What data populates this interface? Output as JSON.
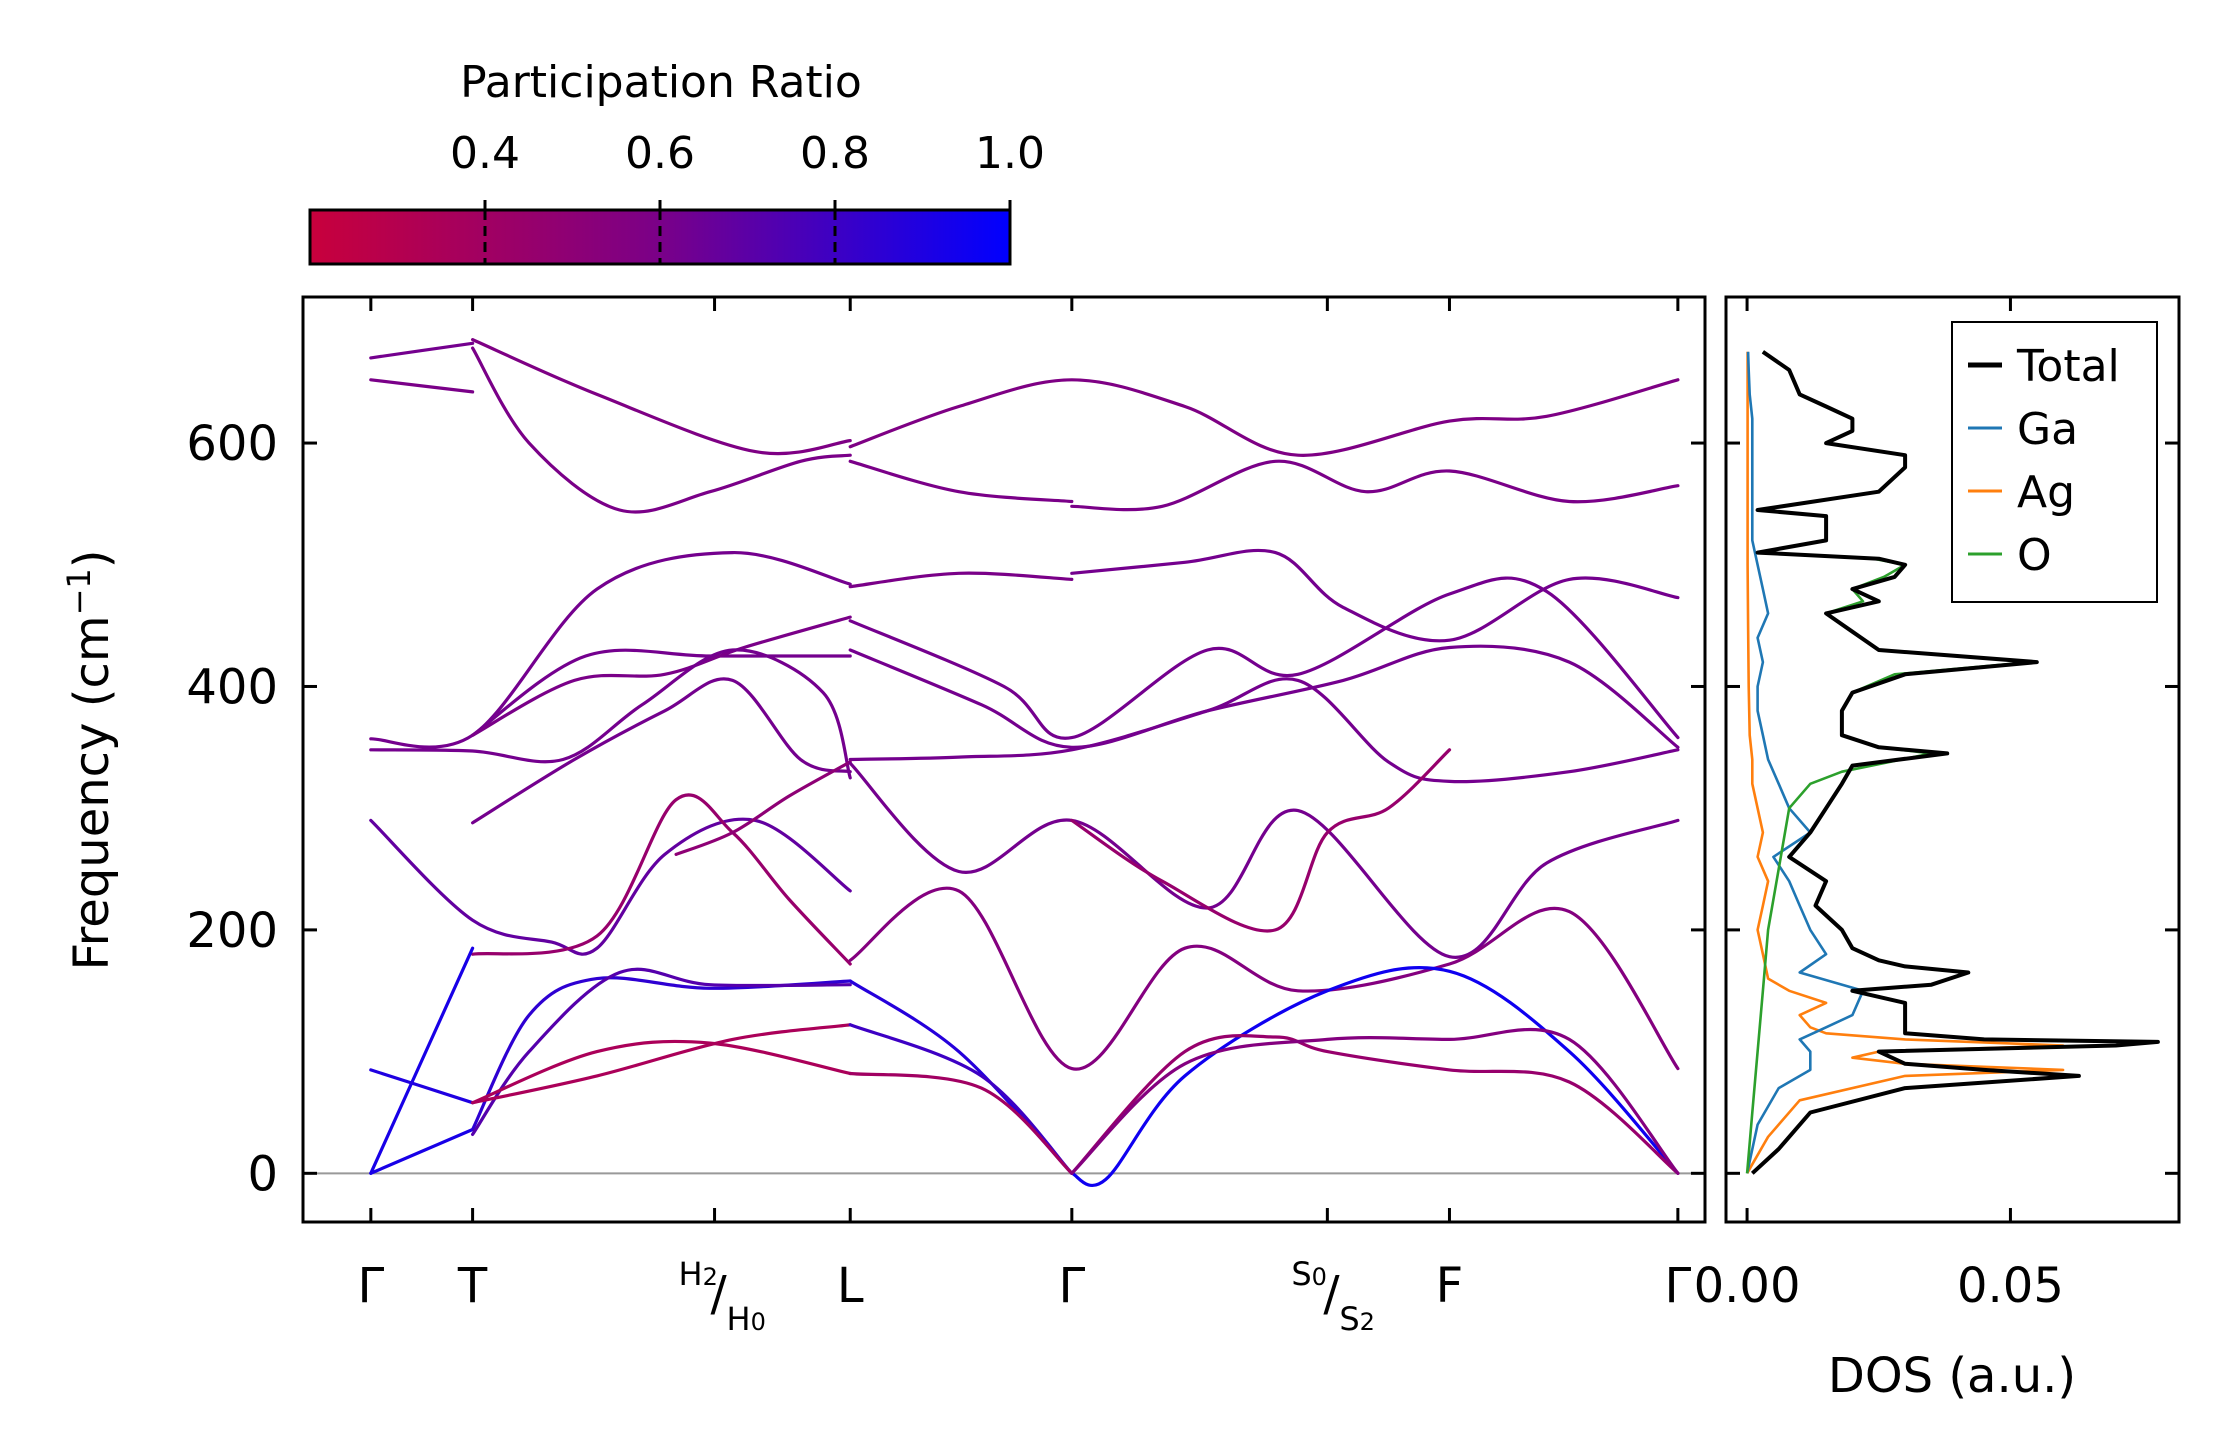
{
  "colorbar": {
    "label": "Participation Ratio",
    "range": [
      0.2,
      1.0
    ],
    "ticks": [
      "0.4",
      "0.6",
      "0.8",
      "1.0"
    ],
    "tick_values": [
      0.4,
      0.6,
      0.8,
      1.0
    ],
    "color_low": "#c8003c",
    "color_mid": "#7a0088",
    "color_high": "#0000ff"
  },
  "chart_data": [
    {
      "type": "line",
      "name": "phonon-band-structure",
      "ylabel": "Frequency (cm",
      "ylabel_sup": "−1",
      "ylabel_tail": ")",
      "ylim": [
        -40,
        720
      ],
      "yticks": [
        "0",
        "200",
        "400",
        "600"
      ],
      "ytick_values": [
        0,
        200,
        400,
        600
      ],
      "xlim": [
        -0.3,
        5.9
      ],
      "kpoints": [
        {
          "label": "Γ",
          "x": 0
        },
        {
          "label": "T",
          "x": 0.45
        },
        {
          "top": "H",
          "top_sub": "2",
          "bottom": "H",
          "bottom_sub": "0",
          "x": 1.52
        },
        {
          "label": "L",
          "x": 2.12
        },
        {
          "label": "Γ",
          "x": 3.1
        },
        {
          "top": "S",
          "top_sub": "0",
          "bottom": "S",
          "bottom_sub": "2",
          "x": 4.23
        },
        {
          "label": "F",
          "x": 4.77
        },
        {
          "label": "Γ",
          "x": 5.78
        }
      ],
      "zero_line": 0,
      "bands": [
        {
          "pr": 0.62,
          "x": [
            0,
            0.45
          ],
          "y": [
            670,
            682
          ]
        },
        {
          "pr": 0.6,
          "x": [
            0,
            0.45
          ],
          "y": [
            652,
            642
          ]
        },
        {
          "pr": 0.58,
          "x": [
            0.45,
            1.0,
            1.7,
            2.12
          ],
          "y": [
            685,
            640,
            593,
            602
          ]
        },
        {
          "pr": 0.6,
          "x": [
            0.45,
            0.7,
            1.1,
            1.5,
            1.9,
            2.12
          ],
          "y": [
            678,
            600,
            545,
            560,
            585,
            590
          ]
        },
        {
          "pr": 0.58,
          "x": [
            2.12,
            2.6,
            3.1,
            3.6,
            4.1,
            4.77,
            5.2,
            5.78
          ],
          "y": [
            597,
            630,
            652,
            630,
            590,
            618,
            622,
            652
          ]
        },
        {
          "pr": 0.6,
          "x": [
            2.12,
            2.6,
            3.1
          ],
          "y": [
            585,
            560,
            552
          ]
        },
        {
          "pr": 0.6,
          "x": [
            3.1,
            3.5,
            4.0,
            4.4,
            4.77,
            5.3,
            5.78
          ],
          "y": [
            548,
            548,
            585,
            560,
            577,
            552,
            565
          ]
        },
        {
          "pr": 0.62,
          "x": [
            0,
            0.45,
            1.0,
            1.6,
            2.12
          ],
          "y": [
            357,
            360,
            480,
            510,
            484
          ]
        },
        {
          "pr": 0.6,
          "x": [
            2.12,
            2.6,
            3.1
          ],
          "y": [
            482,
            493,
            488
          ]
        },
        {
          "pr": 0.62,
          "x": [
            3.1,
            3.6,
            4.0,
            4.3,
            4.77,
            5.3,
            5.78
          ],
          "y": [
            493,
            502,
            510,
            465,
            438,
            488,
            473
          ]
        },
        {
          "pr": 0.62,
          "x": [
            0.45,
            0.95,
            1.5,
            2.12
          ],
          "y": [
            360,
            425,
            425,
            425
          ]
        },
        {
          "pr": 0.6,
          "x": [
            0.45,
            0.9,
            1.3,
            1.65,
            2.12
          ],
          "y": [
            360,
            405,
            410,
            432,
            457
          ]
        },
        {
          "pr": 0.62,
          "x": [
            2.12,
            2.8,
            3.1,
            3.7,
            4.1,
            4.77,
            5.2,
            5.78
          ],
          "y": [
            454,
            400,
            358,
            430,
            410,
            476,
            478,
            358
          ]
        },
        {
          "pr": 0.62,
          "x": [
            2.12,
            2.7,
            3.1,
            3.7,
            4.3,
            4.77,
            5.3,
            5.78
          ],
          "y": [
            430,
            385,
            350,
            380,
            405,
            432,
            420,
            350
          ]
        },
        {
          "pr": 0.62,
          "x": [
            0,
            0.45,
            0.85,
            1.2,
            1.6,
            2.0,
            2.12
          ],
          "y": [
            348,
            347,
            340,
            385,
            430,
            395,
            325
          ]
        },
        {
          "pr": 0.62,
          "x": [
            0.45,
            0.9,
            1.3,
            1.6,
            1.9,
            2.12
          ],
          "y": [
            288,
            340,
            380,
            405,
            340,
            330
          ]
        },
        {
          "pr": 0.62,
          "x": [
            2.12,
            2.6,
            3.1,
            3.7,
            4.1,
            4.5,
            4.77,
            5.3,
            5.78
          ],
          "y": [
            340,
            342,
            348,
            380,
            405,
            338,
            322,
            330,
            348
          ]
        },
        {
          "pr": 0.68,
          "x": [
            0,
            0.45,
            0.8,
            1.0,
            1.3,
            1.7,
            2.12
          ],
          "y": [
            290,
            208,
            190,
            185,
            262,
            290,
            232
          ]
        },
        {
          "pr": 0.45,
          "x": [
            0.45,
            1.0,
            1.35,
            1.6,
            1.85,
            2.12
          ],
          "y": [
            180,
            195,
            307,
            280,
            225,
            172
          ]
        },
        {
          "pr": 0.5,
          "x": [
            1.35,
            1.6,
            1.85,
            2.12
          ],
          "y": [
            262,
            280,
            310,
            338
          ]
        },
        {
          "pr": 0.62,
          "x": [
            2.12,
            2.6,
            3.1,
            3.7,
            4.1,
            4.77,
            5.2,
            5.78
          ],
          "y": [
            337,
            248,
            290,
            218,
            298,
            178,
            255,
            290
          ]
        },
        {
          "pr": 0.45,
          "x": [
            3.1,
            3.5,
            4.0,
            4.23,
            4.5,
            4.77
          ],
          "y": [
            290,
            240,
            200,
            280,
            300,
            348
          ]
        },
        {
          "pr": 0.55,
          "x": [
            2.12,
            2.6,
            3.1,
            3.6,
            4.1,
            4.77,
            5.3,
            5.78
          ],
          "y": [
            175,
            232,
            86,
            185,
            150,
            172,
            215,
            86
          ]
        },
        {
          "pr": 0.92,
          "x": [
            0,
            0.45
          ],
          "y": [
            0,
            185
          ]
        },
        {
          "pr": 0.9,
          "x": [
            0,
            0.45
          ],
          "y": [
            85,
            58
          ]
        },
        {
          "pr": 0.92,
          "x": [
            0,
            0.45
          ],
          "y": [
            0,
            36
          ]
        },
        {
          "pr": 0.85,
          "x": [
            0.45,
            0.7,
            1.0,
            1.5,
            2.12
          ],
          "y": [
            36,
            130,
            160,
            152,
            158
          ]
        },
        {
          "pr": 0.72,
          "x": [
            0.45,
            0.7,
            1.1,
            1.5,
            2.12
          ],
          "y": [
            32,
            100,
            165,
            155,
            155
          ]
        },
        {
          "pr": 0.35,
          "x": [
            0.45,
            1.0,
            1.5,
            2.12
          ],
          "y": [
            58,
            100,
            107,
            82
          ]
        },
        {
          "pr": 0.35,
          "x": [
            0.45,
            1.0,
            1.6,
            2.12
          ],
          "y": [
            58,
            80,
            110,
            122
          ]
        },
        {
          "pr": 0.88,
          "x": [
            2.12,
            2.6,
            3.1
          ],
          "y": [
            158,
            100,
            0
          ]
        },
        {
          "pr": 0.8,
          "x": [
            2.12,
            2.7,
            3.1
          ],
          "y": [
            122,
            80,
            0
          ]
        },
        {
          "pr": 0.4,
          "x": [
            2.12,
            2.7,
            3.1
          ],
          "y": [
            82,
            70,
            0
          ]
        },
        {
          "pr": 0.95,
          "x": [
            3.1,
            3.25,
            3.6,
            4.23,
            4.77,
            5.3,
            5.78
          ],
          "y": [
            0,
            -5,
            80,
            150,
            166,
            100,
            0
          ]
        },
        {
          "pr": 0.45,
          "x": [
            3.1,
            3.6,
            4.0,
            4.23,
            4.77,
            5.3,
            5.78
          ],
          "y": [
            0,
            100,
            112,
            100,
            85,
            75,
            0
          ]
        },
        {
          "pr": 0.55,
          "x": [
            3.1,
            3.6,
            4.23,
            4.77,
            5.3,
            5.78
          ],
          "y": [
            0,
            90,
            110,
            110,
            110,
            0
          ]
        }
      ]
    },
    {
      "type": "line",
      "name": "density-of-states",
      "xlabel": "DOS (a.u.)",
      "xticks": [
        "0.00",
        "0.05"
      ],
      "xtick_values": [
        0.0,
        0.05
      ],
      "xlim": [
        -0.004,
        0.082
      ],
      "ylim": [
        -40,
        720
      ],
      "legend_position": "top-right",
      "series": [
        {
          "name": "Total",
          "color": "#000000",
          "y": [
            0,
            20,
            50,
            70,
            80,
            85,
            90,
            100,
            105,
            108,
            110,
            115,
            125,
            140,
            150,
            155,
            165,
            170,
            175,
            185,
            200,
            220,
            240,
            260,
            280,
            300,
            320,
            335,
            345,
            350,
            360,
            380,
            395,
            410,
            420,
            430,
            445,
            460,
            470,
            480,
            490,
            500,
            505,
            510,
            520,
            540,
            545,
            560,
            580,
            590,
            600,
            610,
            620,
            630,
            640,
            660,
            675
          ],
          "values": [
            0.001,
            0.006,
            0.012,
            0.03,
            0.063,
            0.045,
            0.03,
            0.025,
            0.07,
            0.078,
            0.045,
            0.03,
            0.03,
            0.03,
            0.02,
            0.035,
            0.042,
            0.03,
            0.025,
            0.02,
            0.018,
            0.013,
            0.015,
            0.008,
            0.012,
            0.015,
            0.018,
            0.02,
            0.038,
            0.025,
            0.018,
            0.018,
            0.02,
            0.03,
            0.055,
            0.025,
            0.02,
            0.015,
            0.025,
            0.02,
            0.028,
            0.03,
            0.025,
            0.002,
            0.015,
            0.015,
            0.002,
            0.025,
            0.03,
            0.03,
            0.015,
            0.02,
            0.02,
            0.015,
            0.01,
            0.008,
            0.003
          ]
        },
        {
          "name": "Ga",
          "color": "#1f77b4",
          "y": [
            0,
            40,
            70,
            85,
            100,
            110,
            120,
            130,
            150,
            165,
            180,
            200,
            220,
            240,
            260,
            280,
            300,
            320,
            340,
            360,
            380,
            400,
            420,
            440,
            460,
            480,
            500,
            520,
            540,
            560,
            580,
            600,
            620,
            640,
            660,
            675
          ],
          "values": [
            0.0,
            0.002,
            0.006,
            0.012,
            0.012,
            0.01,
            0.015,
            0.02,
            0.022,
            0.01,
            0.015,
            0.012,
            0.01,
            0.008,
            0.005,
            0.012,
            0.008,
            0.006,
            0.004,
            0.003,
            0.002,
            0.002,
            0.003,
            0.002,
            0.004,
            0.003,
            0.002,
            0.001,
            0.001,
            0.001,
            0.001,
            0.001,
            0.001,
            0.0005,
            0.0003,
            0.0002
          ]
        },
        {
          "name": "Ag",
          "color": "#ff7f0e",
          "y": [
            0,
            30,
            60,
            80,
            85,
            90,
            95,
            100,
            105,
            110,
            115,
            120,
            130,
            140,
            150,
            160,
            180,
            200,
            220,
            240,
            260,
            280,
            300,
            320,
            340,
            360,
            400,
            450,
            500,
            550,
            600,
            650,
            675
          ],
          "values": [
            0.0,
            0.004,
            0.01,
            0.03,
            0.06,
            0.03,
            0.02,
            0.025,
            0.06,
            0.03,
            0.015,
            0.012,
            0.01,
            0.015,
            0.008,
            0.004,
            0.003,
            0.002,
            0.003,
            0.004,
            0.002,
            0.003,
            0.002,
            0.001,
            0.001,
            0.0005,
            0.0003,
            0.0002,
            0.0001,
            0.0001,
            0.0001,
            0.0001,
            0.0001
          ]
        },
        {
          "name": "O",
          "color": "#2ca02c",
          "y": [
            0,
            50,
            100,
            150,
            200,
            250,
            300,
            320,
            330,
            345,
            350,
            360,
            380,
            395,
            410,
            420,
            430,
            445,
            460,
            470,
            480,
            490,
            500,
            505,
            510,
            520,
            540,
            545,
            560,
            580,
            590,
            600,
            610,
            620,
            630,
            640,
            660,
            675
          ],
          "values": [
            0.0,
            0.001,
            0.002,
            0.003,
            0.004,
            0.006,
            0.008,
            0.012,
            0.018,
            0.035,
            0.025,
            0.018,
            0.018,
            0.02,
            0.028,
            0.054,
            0.025,
            0.02,
            0.015,
            0.022,
            0.02,
            0.026,
            0.03,
            0.024,
            0.002,
            0.015,
            0.015,
            0.002,
            0.025,
            0.03,
            0.03,
            0.015,
            0.02,
            0.02,
            0.015,
            0.01,
            0.008,
            0.003
          ]
        }
      ]
    }
  ]
}
